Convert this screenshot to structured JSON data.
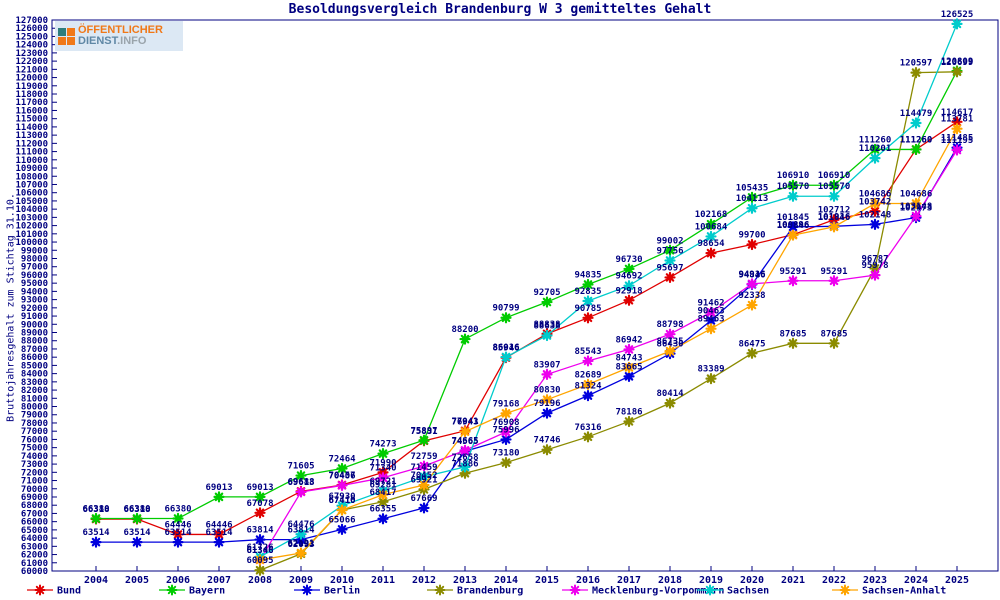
{
  "page_title": "Besoldungsvergleich Brandenburg W 3 gemitteltes Gehalt",
  "logo": {
    "line1": "ÖFFENTLICHER",
    "line2_a": "DIENST",
    "line2_b": ".INFO"
  },
  "colors": {
    "axis": "#000080",
    "point_label": "#000080",
    "background": "#ffffff"
  },
  "chart_data": {
    "type": "line",
    "title": "Besoldungsvergleich Brandenburg W 3 gemitteltes Gehalt",
    "xlabel": "",
    "ylabel": "Bruttojahresgehalt zum Stichtag 31.10.",
    "ylim": [
      60000,
      127000
    ],
    "ytick_step": 1000,
    "grid": false,
    "legend_position": "bottom",
    "marker": "star",
    "x": [
      2004,
      2005,
      2006,
      2007,
      2008,
      2009,
      2010,
      2011,
      2012,
      2013,
      2014,
      2015,
      2016,
      2017,
      2018,
      2019,
      2020,
      2021,
      2022,
      2023,
      2024,
      2025
    ],
    "series": [
      {
        "name": "Bund",
        "color": "#e00000",
        "values": [
          66318,
          66318,
          64446,
          64446,
          67078,
          69688,
          70457,
          71990,
          75831,
          77041,
          85946,
          88838,
          90785,
          92918,
          95697,
          98654,
          99700,
          100896,
          102712,
          103742,
          111260,
          114617
        ]
      },
      {
        "name": "Bayern",
        "color": "#00cc00",
        "values": [
          66380,
          66380,
          66380,
          69013,
          69013,
          71605,
          72464,
          74273,
          75897,
          88200,
          90799,
          92705,
          94835,
          96730,
          99002,
          102168,
          105435,
          106910,
          106910,
          111260,
          111260,
          120809
        ]
      },
      {
        "name": "Berlin",
        "color": "#0000dd",
        "values": [
          63514,
          63514,
          63514,
          63514,
          63814,
          63814,
          65066,
          66355,
          67669,
          74565,
          75996,
          79196,
          81324,
          83665,
          86430,
          90463,
          94846,
          101845,
          101916,
          102148,
          102973,
          111485
        ]
      },
      {
        "name": "Brandenburg",
        "color": "#8b8b00",
        "values": [
          null,
          null,
          null,
          null,
          60095,
          62093,
          67410,
          68417,
          69921,
          71886,
          73180,
          74746,
          76316,
          78186,
          80414,
          83389,
          86475,
          87685,
          87685,
          96787,
          120597,
          120699
        ]
      },
      {
        "name": "Mecklenburg-Vorpommern",
        "color": "#ee00ee",
        "values": [
          null,
          null,
          null,
          null,
          61346,
          69613,
          70406,
          71340,
          72759,
          74665,
          76908,
          83907,
          85543,
          86942,
          88798,
          91462,
          94916,
          95291,
          95291,
          95978,
          103148,
          111195
        ]
      },
      {
        "name": "Sachsen",
        "color": "#00cccc",
        "values": [
          null,
          null,
          null,
          null,
          61726,
          64476,
          67930,
          69721,
          71459,
          72658,
          86016,
          88638,
          92835,
          94692,
          97756,
          100684,
          104113,
          105570,
          105570,
          110201,
          114479,
          126525
        ]
      },
      {
        "name": "Sachsen-Anhalt",
        "color": "#ffa500",
        "values": [
          null,
          null,
          null,
          null,
          61346,
          62191,
          67410,
          69281,
          70452,
          76943,
          79168,
          80830,
          82689,
          84743,
          86735,
          89463,
          92338,
          100846,
          101846,
          104686,
          104686,
          113781
        ]
      }
    ]
  }
}
